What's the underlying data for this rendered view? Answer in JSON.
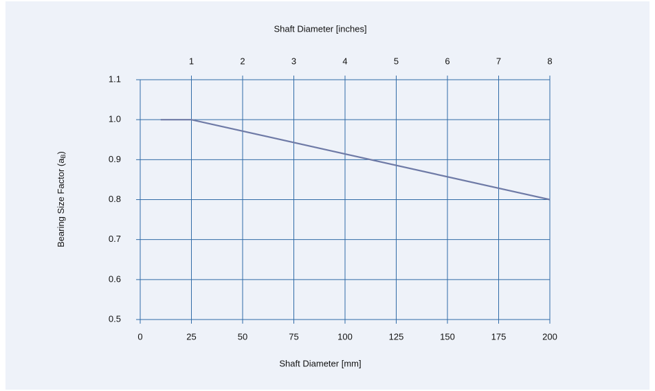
{
  "chart_data": {
    "type": "line",
    "xlabel": "Shaft Diameter [mm]",
    "x2label": "Shaft Diameter [inches]",
    "ylabel": [
      "Bearing Size Factor (a",
      "B",
      ")"
    ],
    "x": [
      10,
      25,
      200
    ],
    "series": [
      {
        "color": "#6e7aa6",
        "values": [
          1.0,
          1.0,
          0.8
        ]
      }
    ],
    "xlim": [
      0,
      200
    ],
    "xticks": [
      0,
      25,
      50,
      75,
      100,
      125,
      150,
      175,
      200
    ],
    "x2lim": [
      0,
      8
    ],
    "x2ticks": [
      1,
      2,
      3,
      4,
      5,
      6,
      7,
      8
    ],
    "ylim": [
      0.5,
      1.1
    ],
    "yticks": [
      {
        "value": 0.5,
        "label": "0.5"
      },
      {
        "value": 0.6,
        "label": "0.6"
      },
      {
        "value": 0.7,
        "label": "0.7"
      },
      {
        "value": 0.8,
        "label": "0.8"
      },
      {
        "value": 0.9,
        "label": "0.9"
      },
      {
        "value": 1.0,
        "label": "1.0"
      },
      {
        "value": 1.1,
        "label": "1.1"
      }
    ],
    "grid": true
  }
}
